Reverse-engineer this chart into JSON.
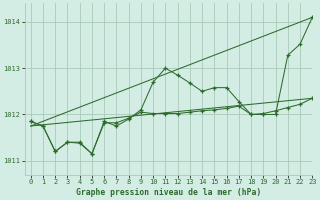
{
  "title": "Graphe pression niveau de la mer (hPa)",
  "background_color": "#d4ede4",
  "grid_color": "#a8cab8",
  "line_color": "#2d6b2d",
  "ylim": [
    1010.7,
    1014.4
  ],
  "xlim": [
    -0.5,
    23
  ],
  "yticks": [
    1011,
    1012,
    1013,
    1014
  ],
  "xticks": [
    0,
    1,
    2,
    3,
    4,
    5,
    6,
    7,
    8,
    9,
    10,
    11,
    12,
    13,
    14,
    15,
    16,
    17,
    18,
    19,
    20,
    21,
    22,
    23
  ],
  "trend1_x": [
    0,
    23
  ],
  "trend1_y": [
    1011.75,
    1012.35
  ],
  "trend2_x": [
    0,
    23
  ],
  "trend2_y": [
    1011.75,
    1014.1
  ],
  "series_main_x": [
    0,
    1,
    2,
    3,
    4,
    5,
    6,
    7,
    8,
    9,
    10,
    11,
    12,
    13,
    14,
    15,
    16,
    17,
    18,
    19,
    20,
    21,
    22,
    23
  ],
  "series_main_y": [
    1011.85,
    1011.75,
    1011.2,
    1011.4,
    1011.4,
    1011.15,
    1011.85,
    1011.75,
    1011.9,
    1012.1,
    1012.7,
    1013.0,
    1012.85,
    1012.68,
    1012.5,
    1012.58,
    1012.58,
    1012.28,
    1012.0,
    1012.0,
    1012.0,
    1013.28,
    1013.52,
    1014.1
  ],
  "series_smooth_x": [
    0,
    1,
    2,
    3,
    4,
    5,
    6,
    7,
    8,
    9,
    10,
    11,
    12,
    13,
    14,
    15,
    16,
    17,
    18,
    19,
    20,
    21,
    22,
    23
  ],
  "series_smooth_y": [
    1011.85,
    1011.75,
    1011.2,
    1011.4,
    1011.38,
    1011.15,
    1011.82,
    1011.82,
    1011.92,
    1012.05,
    1012.02,
    1012.02,
    1012.02,
    1012.05,
    1012.08,
    1012.1,
    1012.13,
    1012.18,
    1012.0,
    1012.02,
    1012.08,
    1012.15,
    1012.22,
    1012.35
  ]
}
